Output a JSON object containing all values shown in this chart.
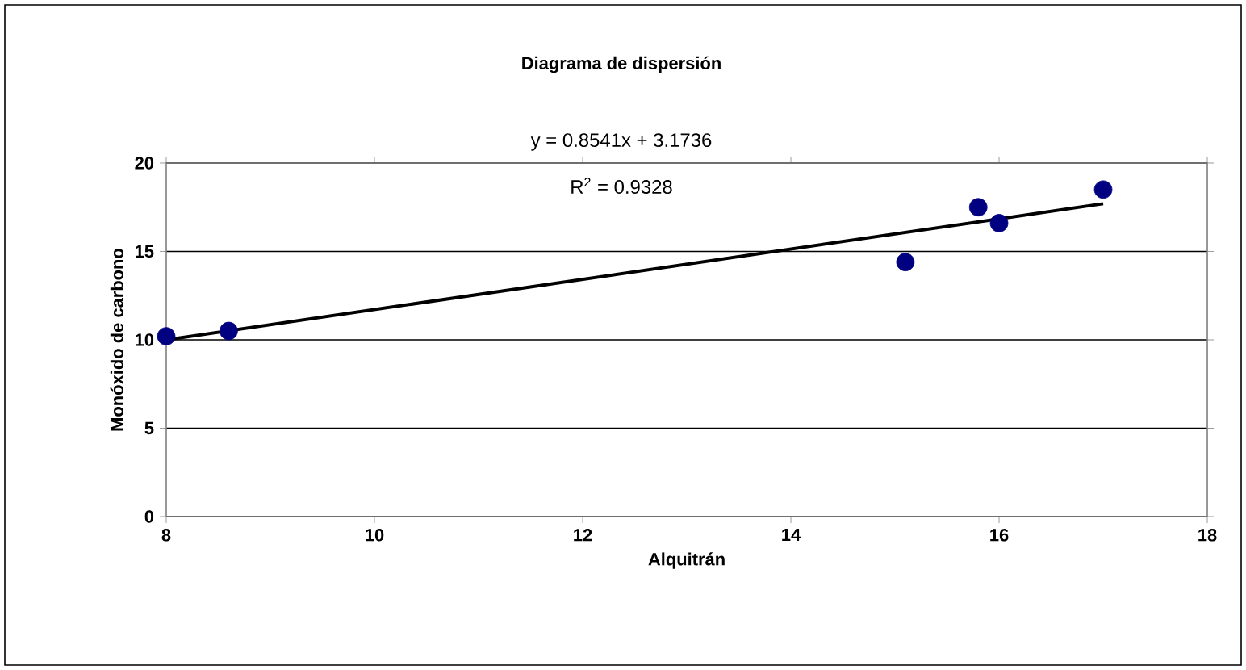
{
  "chart_data": {
    "type": "scatter",
    "title": "Diagrama de dispersión",
    "xlabel": "Alquitrán",
    "ylabel": "Monóxido de carbono",
    "annotations": [
      "y = 0.8541x + 3.1736",
      "R$^{2}$ = 0.9328"
    ],
    "xlim": [
      8,
      18
    ],
    "xticks": [
      8,
      10,
      12,
      14,
      16,
      18
    ],
    "ylim": [
      0,
      20
    ],
    "yticks": [
      0,
      5,
      10,
      15,
      20
    ],
    "grid": "y",
    "marker": "circle",
    "series": [
      {
        "color": "#000080",
        "x": [
          8,
          8.6,
          15.1,
          15.8,
          16,
          17
        ],
        "values": [
          10.2,
          10.5,
          14.4,
          17.5,
          16.6,
          18.5
        ]
      },
      {
        "type": "line",
        "color": "#000000",
        "marker": "none",
        "x": [
          8,
          17
        ],
        "values": [
          10.0,
          17.7
        ]
      }
    ]
  }
}
